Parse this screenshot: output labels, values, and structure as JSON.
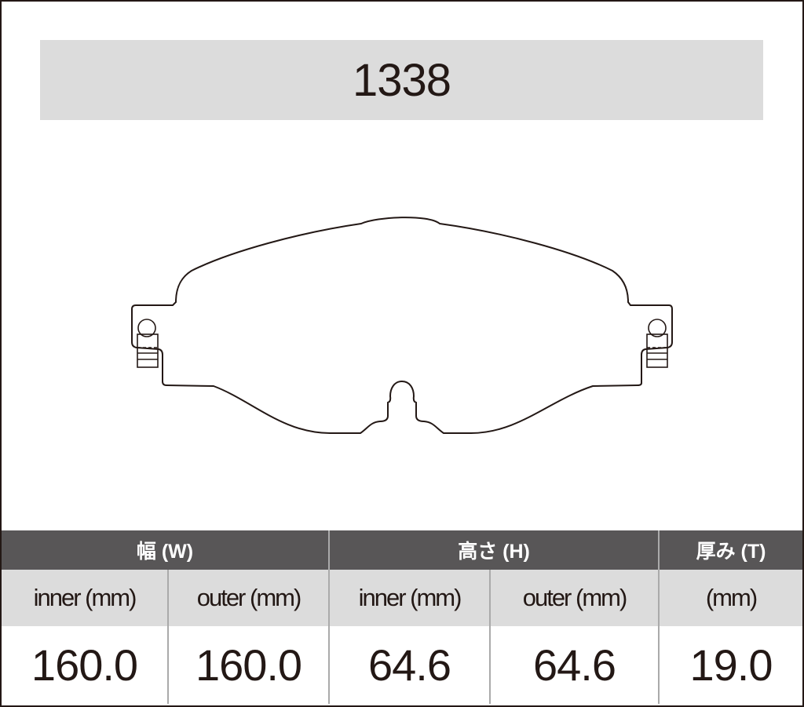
{
  "part_number": "1338",
  "table": {
    "groups": [
      {
        "label": "幅 (W)"
      },
      {
        "label": "高さ (H)"
      },
      {
        "label": "厚み (T)"
      }
    ],
    "columns": [
      "inner (mm)",
      "outer (mm)",
      "inner (mm)",
      "outer (mm)",
      "(mm)"
    ],
    "values": [
      "160.0",
      "160.0",
      "64.6",
      "64.6",
      "19.0"
    ]
  },
  "colors": {
    "header_bg": "#585657",
    "subheader_bg": "#dcdcdc",
    "title_bg": "#dcdcdc",
    "text": "#231815"
  }
}
